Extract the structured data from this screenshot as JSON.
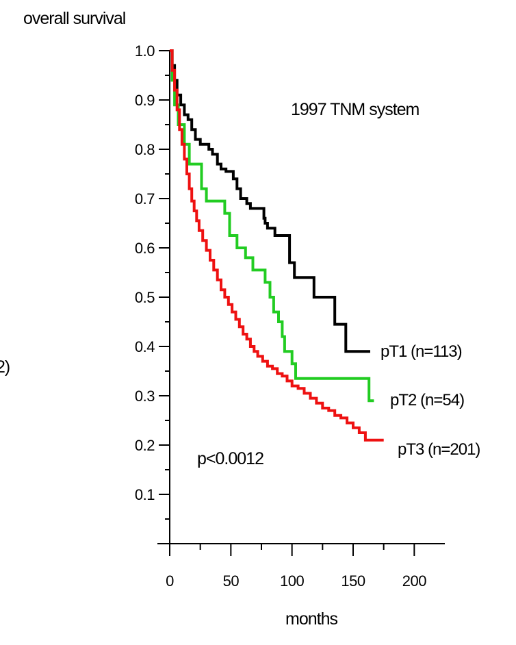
{
  "ylabel": "overall  survival",
  "xlabel": "months",
  "edge_text": "2)",
  "chart_data": {
    "type": "line",
    "title": "1997  TNM  system",
    "xlabel": "months",
    "ylabel": "overall  survival",
    "xlim": [
      0,
      225
    ],
    "ylim": [
      0,
      1.0
    ],
    "x_ticks": [
      "0",
      "50",
      "100",
      "150",
      "200"
    ],
    "y_ticks": [
      "0.1",
      "0.2",
      "0.3",
      "0.4",
      "0.5",
      "0.6",
      "0.7",
      "0.8",
      "0.9",
      "1.0"
    ],
    "annotation": "p<0.0012",
    "series": [
      {
        "name": "pT1 (n=113)",
        "color": "#000000",
        "x": [
          0,
          2,
          4,
          6,
          9,
          12,
          15,
          18,
          21,
          25,
          28,
          32,
          35,
          39,
          42,
          46,
          52,
          55,
          58,
          63,
          66,
          70,
          77,
          78,
          80,
          86,
          92,
          98,
          102,
          108,
          112,
          118,
          123,
          135,
          139,
          144,
          148,
          160,
          164
        ],
        "y": [
          1.0,
          0.97,
          0.94,
          0.91,
          0.89,
          0.87,
          0.86,
          0.84,
          0.82,
          0.81,
          0.81,
          0.8,
          0.79,
          0.77,
          0.76,
          0.755,
          0.74,
          0.72,
          0.7,
          0.69,
          0.68,
          0.68,
          0.66,
          0.65,
          0.64,
          0.625,
          0.625,
          0.57,
          0.54,
          0.54,
          0.54,
          0.5,
          0.5,
          0.445,
          0.445,
          0.39,
          0.39,
          0.39,
          0.39
        ]
      },
      {
        "name": "pT2 (n=54)",
        "color": "#22cc22",
        "x": [
          0,
          2,
          4,
          7,
          12,
          16,
          22,
          26,
          30,
          37,
          45,
          49,
          55,
          62,
          68,
          78,
          82,
          85,
          89,
          92,
          94,
          96,
          100,
          103,
          108,
          118,
          130,
          150,
          163,
          167
        ],
        "y": [
          1.0,
          0.94,
          0.89,
          0.85,
          0.81,
          0.77,
          0.77,
          0.72,
          0.695,
          0.695,
          0.67,
          0.625,
          0.6,
          0.58,
          0.555,
          0.53,
          0.5,
          0.47,
          0.45,
          0.42,
          0.39,
          0.39,
          0.365,
          0.335,
          0.335,
          0.335,
          0.335,
          0.335,
          0.29,
          0.29
        ]
      },
      {
        "name": "pT3 (n=201)",
        "color": "#ee1111",
        "x": [
          0,
          2,
          4,
          6,
          8,
          10,
          12,
          14,
          16,
          18,
          20,
          22,
          24,
          27,
          30,
          33,
          36,
          39,
          42,
          45,
          48,
          51,
          54,
          57,
          60,
          63,
          66,
          69,
          72,
          76,
          80,
          84,
          88,
          92,
          96,
          100,
          105,
          110,
          115,
          120,
          125,
          130,
          135,
          140,
          145,
          150,
          155,
          160,
          165,
          170,
          175
        ],
        "y": [
          1.0,
          0.96,
          0.92,
          0.88,
          0.84,
          0.81,
          0.78,
          0.75,
          0.72,
          0.695,
          0.675,
          0.655,
          0.635,
          0.615,
          0.595,
          0.575,
          0.555,
          0.535,
          0.515,
          0.5,
          0.485,
          0.47,
          0.455,
          0.44,
          0.425,
          0.415,
          0.4,
          0.39,
          0.38,
          0.37,
          0.36,
          0.355,
          0.345,
          0.34,
          0.33,
          0.32,
          0.315,
          0.305,
          0.295,
          0.285,
          0.275,
          0.27,
          0.26,
          0.255,
          0.245,
          0.235,
          0.225,
          0.21,
          0.21,
          0.21,
          0.21
        ]
      }
    ]
  }
}
